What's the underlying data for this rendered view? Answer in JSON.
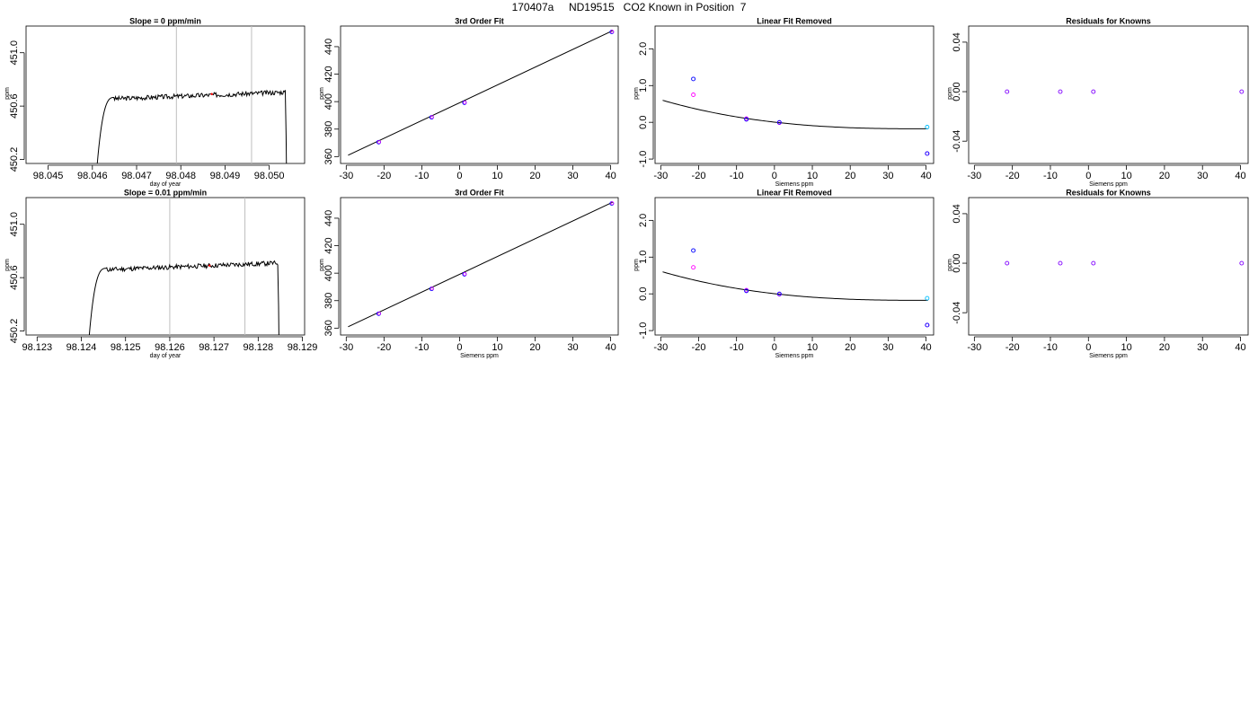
{
  "figure": {
    "title": "170407a     ND19515   CO2 Known in Position  7"
  },
  "colors": {
    "line": "#000000",
    "vline": "#bebebe",
    "blue": "#0000ff",
    "magenta": "#ff00ff",
    "purple": "#8000ff",
    "cyan": "#00bfff",
    "red": "#ff0000"
  },
  "chart_data": [
    {
      "type": "line",
      "title": "Slope =  0  ppm/min",
      "xlabel": "day of year",
      "ylabel": "ppm",
      "xlim": [
        98.0445,
        98.0508
      ],
      "ylim": [
        450.17,
        451.2
      ],
      "xticks": [
        "98.045",
        "98.046",
        "98.047",
        "98.048",
        "98.049",
        "98.050"
      ],
      "xtick_values": [
        98.045,
        98.046,
        98.047,
        98.048,
        98.049,
        98.05
      ],
      "yticks": [
        "450.2",
        "450.6",
        "451.0"
      ],
      "ytick_values": [
        450.2,
        450.6,
        451.0
      ],
      "vlines": [
        98.0479,
        98.0496
      ],
      "plateau": 450.685,
      "noise_seed": 3,
      "trace_start": 98.04605,
      "trace_end": 98.0504,
      "marker": {
        "x": 98.0487,
        "y": 450.69
      }
    },
    {
      "type": "scatter",
      "title": "3rd Order Fit",
      "xlabel": "",
      "ylabel": "ppm",
      "xlim": [
        -31.5,
        42
      ],
      "ylim": [
        355,
        455
      ],
      "xticks": [
        "-30",
        "-20",
        "-10",
        "0",
        "10",
        "20",
        "30",
        "40"
      ],
      "xtick_values": [
        -30,
        -20,
        -10,
        0,
        10,
        20,
        30,
        40
      ],
      "yticks": [
        "360",
        "380",
        "400",
        "420",
        "440"
      ],
      "ytick_values": [
        360,
        380,
        400,
        420,
        440
      ],
      "points": [
        {
          "x": -21.4,
          "y": 370.5
        },
        {
          "x": -7.4,
          "y": 388.6
        },
        {
          "x": 1.3,
          "y": 399.2
        },
        {
          "x": 40.3,
          "y": 450.7
        }
      ],
      "fit_line": {
        "x": [
          -29.5,
          40.5
        ],
        "y": [
          361,
          451.6
        ]
      }
    },
    {
      "type": "scatter",
      "title": "Linear Fit Removed",
      "xlabel": "Siemens ppm",
      "ylabel": "ppm",
      "xlim": [
        -31.5,
        42
      ],
      "ylim": [
        -1.12,
        2.62
      ],
      "xticks": [
        "-30",
        "-20",
        "-10",
        "0",
        "10",
        "20",
        "30",
        "40"
      ],
      "xtick_values": [
        -30,
        -20,
        -10,
        0,
        10,
        20,
        30,
        40
      ],
      "yticks": [
        "-1.0",
        "0.0",
        "1.0",
        "2.0"
      ],
      "ytick_values": [
        -1.0,
        0.0,
        1.0,
        2.0
      ],
      "points_blue": [
        {
          "x": -21.4,
          "y": 1.18
        },
        {
          "x": -7.4,
          "y": 0.08
        },
        {
          "x": 1.3,
          "y": 0.0
        },
        {
          "x": 40.3,
          "y": -0.85
        }
      ],
      "points_magenta": [
        {
          "x": -21.4,
          "y": 0.75
        },
        {
          "x": -7.4,
          "y": 0.1
        },
        {
          "x": 1.3,
          "y": -0.01
        },
        {
          "x": 40.3,
          "y": -0.85
        }
      ],
      "points_cyan": [
        {
          "x": 40.3,
          "y": -0.13
        }
      ],
      "curve": {
        "coef": [
          0.0048,
          -0.0118,
          0.00024,
          5.5e-07
        ],
        "x": [
          -29.5,
          40.5
        ]
      }
    },
    {
      "type": "scatter",
      "title": "Residuals for Knowns",
      "xlabel": "Siemens ppm",
      "ylabel": "ppm",
      "xlim": [
        -31.5,
        42
      ],
      "ylim": [
        -0.058,
        0.053
      ],
      "xticks": [
        "-30",
        "-20",
        "-10",
        "0",
        "10",
        "20",
        "30",
        "40"
      ],
      "xtick_values": [
        -30,
        -20,
        -10,
        0,
        10,
        20,
        30,
        40
      ],
      "yticks": [
        "-0.04",
        "0.00",
        "0.04"
      ],
      "ytick_values": [
        -0.04,
        0.0,
        0.04
      ],
      "points": [
        {
          "x": -21.4,
          "y": 0.0
        },
        {
          "x": -7.4,
          "y": 0.0
        },
        {
          "x": 1.3,
          "y": 0.0
        },
        {
          "x": 40.3,
          "y": 0.0
        }
      ]
    },
    {
      "type": "line",
      "title": "Slope =  0.01  ppm/min",
      "xlabel": "day of year",
      "ylabel": "ppm",
      "xlim": [
        98.12275,
        98.12905
      ],
      "ylim": [
        450.17,
        451.2
      ],
      "xticks": [
        "98.123",
        "98.124",
        "98.125",
        "98.126",
        "98.127",
        "98.128",
        "98.129"
      ],
      "xtick_values": [
        98.123,
        98.124,
        98.125,
        98.126,
        98.127,
        98.128,
        98.129
      ],
      "yticks": [
        "450.2",
        "450.6",
        "451.0"
      ],
      "ytick_values": [
        450.2,
        450.6,
        451.0
      ],
      "vlines": [
        98.126,
        98.1277
      ],
      "plateau": 450.69,
      "noise_seed": 11,
      "trace_start": 98.12412,
      "trace_end": 98.12848,
      "marker": {
        "x": 98.1269,
        "y": 450.69
      }
    },
    {
      "type": "scatter",
      "title": "3rd Order Fit",
      "xlabel": "Siemens ppm",
      "ylabel": "ppm",
      "xlim": [
        -31.5,
        42
      ],
      "ylim": [
        355,
        455
      ],
      "xticks": [
        "-30",
        "-20",
        "-10",
        "0",
        "10",
        "20",
        "30",
        "40"
      ],
      "xtick_values": [
        -30,
        -20,
        -10,
        0,
        10,
        20,
        30,
        40
      ],
      "yticks": [
        "360",
        "380",
        "400",
        "420",
        "440"
      ],
      "ytick_values": [
        360,
        380,
        400,
        420,
        440
      ],
      "points": [
        {
          "x": -21.4,
          "y": 370.5
        },
        {
          "x": -7.4,
          "y": 388.6
        },
        {
          "x": 1.3,
          "y": 399.2
        },
        {
          "x": 40.3,
          "y": 450.7
        }
      ],
      "fit_line": {
        "x": [
          -29.5,
          40.5
        ],
        "y": [
          361,
          451.6
        ]
      }
    },
    {
      "type": "scatter",
      "title": "Linear Fit Removed",
      "xlabel": "Siemens ppm",
      "ylabel": "ppm",
      "xlim": [
        -31.5,
        42
      ],
      "ylim": [
        -1.12,
        2.62
      ],
      "xticks": [
        "-30",
        "-20",
        "-10",
        "0",
        "10",
        "20",
        "30",
        "40"
      ],
      "xtick_values": [
        -30,
        -20,
        -10,
        0,
        10,
        20,
        30,
        40
      ],
      "yticks": [
        "-1.0",
        "0.0",
        "1.0",
        "2.0"
      ],
      "ytick_values": [
        -1.0,
        0.0,
        1.0,
        2.0
      ],
      "points_blue": [
        {
          "x": -21.4,
          "y": 1.18
        },
        {
          "x": -7.4,
          "y": 0.08
        },
        {
          "x": 1.3,
          "y": 0.0
        },
        {
          "x": 40.3,
          "y": -0.85
        }
      ],
      "points_magenta": [
        {
          "x": -21.4,
          "y": 0.72
        },
        {
          "x": -7.4,
          "y": 0.1
        },
        {
          "x": 1.3,
          "y": -0.01
        },
        {
          "x": 40.3,
          "y": -0.85
        }
      ],
      "points_cyan": [
        {
          "x": 40.3,
          "y": -0.12
        }
      ],
      "curve": {
        "coef": [
          0.0048,
          -0.0118,
          0.00024,
          5.5e-07
        ],
        "x": [
          -29.5,
          40.5
        ]
      }
    },
    {
      "type": "scatter",
      "title": "Residuals for Knowns",
      "xlabel": "Siemens ppm",
      "ylabel": "ppm",
      "xlim": [
        -31.5,
        42
      ],
      "ylim": [
        -0.058,
        0.053
      ],
      "xticks": [
        "-30",
        "-20",
        "-10",
        "0",
        "10",
        "20",
        "30",
        "40"
      ],
      "xtick_values": [
        -30,
        -20,
        -10,
        0,
        10,
        20,
        30,
        40
      ],
      "yticks": [
        "-0.04",
        "0.00",
        "0.04"
      ],
      "ytick_values": [
        -0.04,
        0.0,
        0.04
      ],
      "points": [
        {
          "x": -21.4,
          "y": 0.0
        },
        {
          "x": -7.4,
          "y": 0.0
        },
        {
          "x": 1.3,
          "y": 0.0
        },
        {
          "x": 40.3,
          "y": 0.0
        }
      ]
    }
  ]
}
